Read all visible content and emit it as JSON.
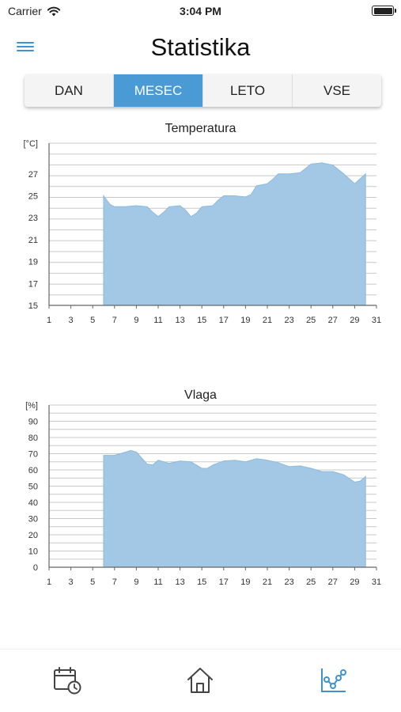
{
  "status_bar": {
    "carrier": "Carrier",
    "time": "3:04 PM"
  },
  "header": {
    "title": "Statistika"
  },
  "tabs": [
    {
      "label": "DAN",
      "active": false
    },
    {
      "label": "MESEC",
      "active": true
    },
    {
      "label": "LETO",
      "active": false
    },
    {
      "label": "VSE",
      "active": false
    }
  ],
  "colors": {
    "accent": "#4a9ad6",
    "area_fill": "#a2c8e6",
    "area_stroke": "#8cbadc",
    "grid": "#c8c8c8"
  },
  "icons": {
    "menu": "hamburger-icon",
    "calendar": "calendar-clock-icon",
    "home": "home-icon",
    "stats": "chart-nodes-icon"
  },
  "chart_data": [
    {
      "type": "area",
      "title": "Temperatura",
      "unit_label": "[°C]",
      "x_ticks": [
        1,
        3,
        5,
        7,
        9,
        11,
        13,
        15,
        17,
        19,
        21,
        23,
        25,
        27,
        29,
        31
      ],
      "y_ticks": [
        15,
        17,
        19,
        21,
        23,
        25,
        27
      ],
      "xlim": [
        1,
        31
      ],
      "ylim": [
        15,
        29.8
      ],
      "grid": true,
      "x": [
        6,
        6.3,
        6.6,
        7,
        7.5,
        8,
        9,
        10,
        10.5,
        11,
        11.5,
        12,
        13,
        13.5,
        14,
        14.5,
        15,
        16,
        16.5,
        17,
        18,
        19,
        19.5,
        20,
        21,
        21.5,
        22,
        23,
        24,
        25,
        26,
        27,
        28,
        29,
        30
      ],
      "y": [
        25,
        24.6,
        24.2,
        24,
        24,
        24,
        24.1,
        24,
        23.5,
        23.1,
        23.5,
        24,
        24.1,
        23.7,
        23.1,
        23.4,
        24,
        24.1,
        24.6,
        25,
        25,
        24.9,
        25.1,
        25.9,
        26.1,
        26.5,
        27,
        27,
        27.1,
        27.9,
        28,
        27.8,
        27,
        26.1,
        27
      ]
    },
    {
      "type": "area",
      "title": "Vlaga",
      "unit_label": "[%]",
      "x_ticks": [
        1,
        3,
        5,
        7,
        9,
        11,
        13,
        15,
        17,
        19,
        21,
        23,
        25,
        27,
        29,
        31
      ],
      "y_ticks": [
        0,
        10,
        20,
        30,
        40,
        50,
        60,
        70,
        80,
        90
      ],
      "xlim": [
        1,
        31
      ],
      "ylim": [
        0,
        100
      ],
      "grid": true,
      "x": [
        6,
        7,
        8,
        8.5,
        9,
        10,
        10.5,
        11,
        12,
        13,
        14,
        15,
        15.5,
        16,
        17,
        18,
        19,
        20,
        21,
        22,
        23,
        24,
        25,
        26,
        27,
        28,
        29,
        29.5,
        30
      ],
      "y": [
        69,
        69,
        71,
        72,
        71,
        63.5,
        63,
        66,
        64,
        65.5,
        65,
        61,
        61,
        63,
        65.5,
        66,
        65,
        67,
        66,
        64.5,
        62,
        62.5,
        61,
        59,
        59,
        57,
        52.5,
        53,
        56
      ]
    }
  ]
}
